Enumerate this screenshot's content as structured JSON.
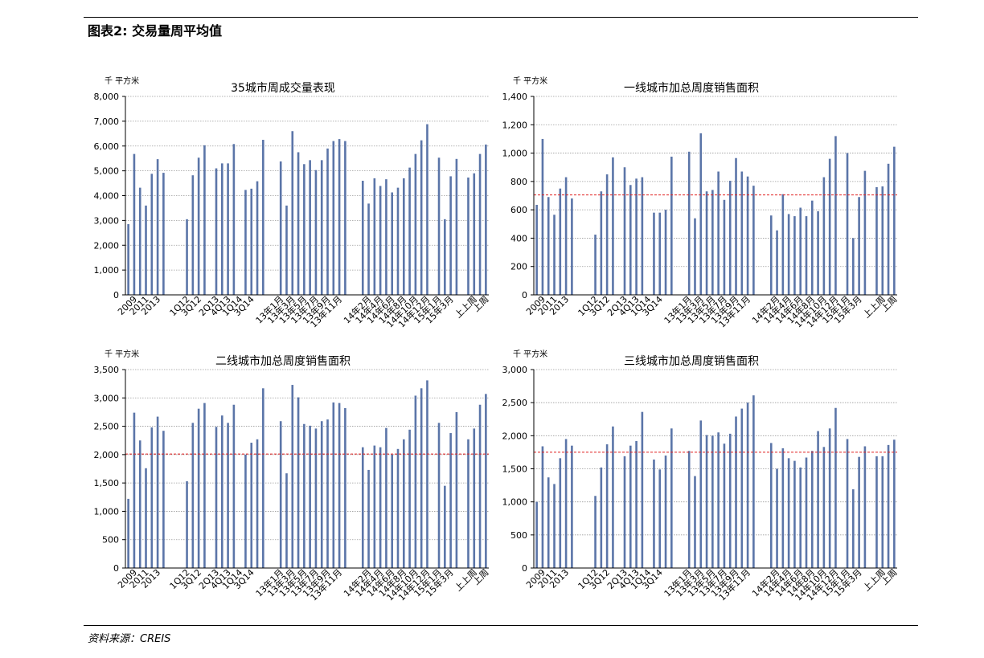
{
  "figure": {
    "title": "图表2: 交易量周平均值",
    "source": "资料来源：CREIS"
  },
  "colors": {
    "bar": "#5b75a8",
    "reference_line": "#e02020",
    "grid": "#9a9a9a"
  },
  "chart_data": [
    {
      "type": "bar",
      "title": "35城市周成交量表现",
      "unit_label": "千 平方米",
      "ylim": [
        0,
        8000
      ],
      "yticks": [
        0,
        1000,
        2000,
        3000,
        4000,
        5000,
        6000,
        7000,
        8000
      ],
      "ytick_labels": [
        "0",
        "1,000",
        "2,000",
        "3,000",
        "4,000",
        "5,000",
        "6,000",
        "7,000",
        "8,000"
      ],
      "reference_line": null,
      "values": [
        2850,
        5680,
        4320,
        3600,
        4880,
        5470,
        4920,
        null,
        null,
        null,
        3050,
        4820,
        5530,
        6030,
        null,
        5100,
        5300,
        5300,
        6080,
        null,
        4230,
        4280,
        4580,
        6250,
        null,
        null,
        5380,
        3600,
        6600,
        5750,
        5270,
        5430,
        5030,
        5430,
        5900,
        6200,
        6280,
        6200,
        null,
        null,
        4600,
        3680,
        4700,
        4390,
        4660,
        4130,
        4320,
        4700,
        5130,
        5680,
        6230,
        6880,
        null,
        5530,
        3050,
        4780,
        5480,
        null,
        4730,
        4900,
        5680,
        6060
      ],
      "x_tick_labels": [
        {
          "text": "2009",
          "i": 1
        },
        {
          "text": "2011",
          "i": 3
        },
        {
          "text": "2013",
          "i": 5
        },
        {
          "text": "1Q12",
          "i": 10
        },
        {
          "text": "3Q12",
          "i": 12
        },
        {
          "text": "2Q13",
          "i": 15
        },
        {
          "text": "4Q13",
          "i": 17
        },
        {
          "text": "1Q14",
          "i": 19
        },
        {
          "text": "3Q14",
          "i": 21
        },
        {
          "text": "13年1月",
          "i": 26
        },
        {
          "text": "13年3月",
          "i": 28
        },
        {
          "text": "13年5月",
          "i": 30
        },
        {
          "text": "13年7月",
          "i": 32
        },
        {
          "text": "13年9月",
          "i": 34
        },
        {
          "text": "13年11月",
          "i": 36
        },
        {
          "text": "14年2月",
          "i": 41
        },
        {
          "text": "14年4月",
          "i": 43
        },
        {
          "text": "14年6月",
          "i": 45
        },
        {
          "text": "14年8月",
          "i": 47
        },
        {
          "text": "14年10月",
          "i": 49
        },
        {
          "text": "14年12月",
          "i": 51
        },
        {
          "text": "15年1月",
          "i": 53
        },
        {
          "text": "15年3月",
          "i": 55
        },
        {
          "text": "上上周",
          "i": 59
        },
        {
          "text": "上周",
          "i": 61
        }
      ]
    },
    {
      "type": "bar",
      "title": "一线城市加总周度销售面积",
      "unit_label": "千 平方米",
      "ylim": [
        0,
        1400
      ],
      "yticks": [
        0,
        200,
        400,
        600,
        800,
        1000,
        1200,
        1400
      ],
      "ytick_labels": [
        "0",
        "200",
        "400",
        "600",
        "800",
        "1,000",
        "1,200",
        "1,400"
      ],
      "reference_line": 705,
      "values": [
        635,
        1100,
        690,
        565,
        750,
        830,
        680,
        null,
        null,
        null,
        425,
        730,
        850,
        970,
        null,
        900,
        775,
        820,
        830,
        null,
        580,
        580,
        600,
        975,
        null,
        null,
        1010,
        540,
        1140,
        730,
        740,
        870,
        670,
        805,
        965,
        870,
        835,
        770,
        null,
        null,
        560,
        455,
        710,
        570,
        555,
        615,
        555,
        665,
        590,
        830,
        960,
        1120,
        null,
        1000,
        400,
        690,
        875,
        null,
        760,
        765,
        925,
        1045
      ],
      "x_tick_labels": [
        {
          "text": "2009",
          "i": 1
        },
        {
          "text": "2011",
          "i": 3
        },
        {
          "text": "2013",
          "i": 5
        },
        {
          "text": "1Q12",
          "i": 10
        },
        {
          "text": "3Q12",
          "i": 12
        },
        {
          "text": "2Q13",
          "i": 15
        },
        {
          "text": "4Q13",
          "i": 17
        },
        {
          "text": "1Q14",
          "i": 19
        },
        {
          "text": "3Q14",
          "i": 21
        },
        {
          "text": "13年1月",
          "i": 26
        },
        {
          "text": "13年3月",
          "i": 28
        },
        {
          "text": "13年5月",
          "i": 30
        },
        {
          "text": "13年7月",
          "i": 32
        },
        {
          "text": "13年9月",
          "i": 34
        },
        {
          "text": "13年11月",
          "i": 36
        },
        {
          "text": "14年2月",
          "i": 41
        },
        {
          "text": "14年4月",
          "i": 43
        },
        {
          "text": "14年6月",
          "i": 45
        },
        {
          "text": "14年8月",
          "i": 47
        },
        {
          "text": "14年10月",
          "i": 49
        },
        {
          "text": "14年12月",
          "i": 51
        },
        {
          "text": "15年1月",
          "i": 53
        },
        {
          "text": "15年3月",
          "i": 55
        },
        {
          "text": "上上周",
          "i": 59
        },
        {
          "text": "上周",
          "i": 61
        }
      ]
    },
    {
      "type": "bar",
      "title": "二线城市加总周度销售面积",
      "unit_label": "千 平方米",
      "ylim": [
        0,
        3500
      ],
      "yticks": [
        0,
        500,
        1000,
        1500,
        2000,
        2500,
        3000,
        3500
      ],
      "ytick_labels": [
        "0",
        "500",
        "1,000",
        "1,500",
        "2,000",
        "2,500",
        "3,000",
        "3,500"
      ],
      "reference_line": 2010,
      "values": [
        1220,
        2740,
        2250,
        1760,
        2480,
        2670,
        2420,
        null,
        null,
        null,
        1530,
        2560,
        2810,
        2910,
        null,
        2490,
        2690,
        2560,
        2880,
        null,
        2000,
        2210,
        2270,
        3170,
        null,
        null,
        2590,
        1670,
        3230,
        3010,
        2540,
        2510,
        2460,
        2590,
        2620,
        2920,
        2910,
        2820,
        null,
        null,
        2130,
        1730,
        2160,
        2130,
        2470,
        2000,
        2100,
        2270,
        2440,
        3040,
        3170,
        3310,
        null,
        2560,
        1450,
        2380,
        2750,
        null,
        2270,
        2460,
        2880,
        3070
      ],
      "x_tick_labels": [
        {
          "text": "2009",
          "i": 1
        },
        {
          "text": "2011",
          "i": 3
        },
        {
          "text": "2013",
          "i": 5
        },
        {
          "text": "1Q12",
          "i": 10
        },
        {
          "text": "3Q12",
          "i": 12
        },
        {
          "text": "2Q13",
          "i": 15
        },
        {
          "text": "4Q13",
          "i": 17
        },
        {
          "text": "1Q14",
          "i": 19
        },
        {
          "text": "3Q14",
          "i": 21
        },
        {
          "text": "13年1月",
          "i": 26
        },
        {
          "text": "13年3月",
          "i": 28
        },
        {
          "text": "13年5月",
          "i": 30
        },
        {
          "text": "13年7月",
          "i": 32
        },
        {
          "text": "13年9月",
          "i": 34
        },
        {
          "text": "13年11月",
          "i": 36
        },
        {
          "text": "14年2月",
          "i": 41
        },
        {
          "text": "14年4月",
          "i": 43
        },
        {
          "text": "14年6月",
          "i": 45
        },
        {
          "text": "14年8月",
          "i": 47
        },
        {
          "text": "14年10月",
          "i": 49
        },
        {
          "text": "14年12月",
          "i": 51
        },
        {
          "text": "15年1月",
          "i": 53
        },
        {
          "text": "15年3月",
          "i": 55
        },
        {
          "text": "上上周",
          "i": 59
        },
        {
          "text": "上周",
          "i": 61
        }
      ]
    },
    {
      "type": "bar",
      "title": "三线城市加总周度销售面积",
      "unit_label": "千 平方米",
      "ylim": [
        0,
        3000
      ],
      "yticks": [
        0,
        500,
        1000,
        1500,
        2000,
        2500,
        3000
      ],
      "ytick_labels": [
        "0",
        "500",
        "1,000",
        "1,500",
        "2,000",
        "2,500",
        "3,000"
      ],
      "reference_line": 1750,
      "values": [
        1000,
        1840,
        1370,
        1270,
        1660,
        1950,
        1850,
        null,
        null,
        null,
        1090,
        1520,
        1870,
        2140,
        null,
        1690,
        1850,
        1920,
        2360,
        null,
        1640,
        1490,
        1700,
        2110,
        null,
        null,
        1770,
        1390,
        2230,
        2010,
        2000,
        2050,
        1880,
        2030,
        2290,
        2410,
        2500,
        2610,
        null,
        null,
        1890,
        1500,
        1810,
        1660,
        1620,
        1520,
        1670,
        1770,
        2070,
        1830,
        2110,
        2420,
        null,
        1950,
        1190,
        1680,
        1840,
        null,
        1690,
        1690,
        1860,
        1940
      ],
      "x_tick_labels": [
        {
          "text": "2009",
          "i": 1
        },
        {
          "text": "2011",
          "i": 3
        },
        {
          "text": "2013",
          "i": 5
        },
        {
          "text": "1Q12",
          "i": 10
        },
        {
          "text": "3Q12",
          "i": 12
        },
        {
          "text": "2Q13",
          "i": 15
        },
        {
          "text": "4Q13",
          "i": 17
        },
        {
          "text": "1Q14",
          "i": 19
        },
        {
          "text": "3Q14",
          "i": 21
        },
        {
          "text": "13年1月",
          "i": 26
        },
        {
          "text": "13年3月",
          "i": 28
        },
        {
          "text": "13年5月",
          "i": 30
        },
        {
          "text": "13年7月",
          "i": 32
        },
        {
          "text": "13年9月",
          "i": 34
        },
        {
          "text": "13年11月",
          "i": 36
        },
        {
          "text": "14年2月",
          "i": 41
        },
        {
          "text": "14年4月",
          "i": 43
        },
        {
          "text": "14年6月",
          "i": 45
        },
        {
          "text": "14年8月",
          "i": 47
        },
        {
          "text": "14年10月",
          "i": 49
        },
        {
          "text": "14年12月",
          "i": 51
        },
        {
          "text": "15年1月",
          "i": 53
        },
        {
          "text": "15年3月",
          "i": 55
        },
        {
          "text": "上上周",
          "i": 59
        },
        {
          "text": "上周",
          "i": 61
        }
      ]
    }
  ]
}
